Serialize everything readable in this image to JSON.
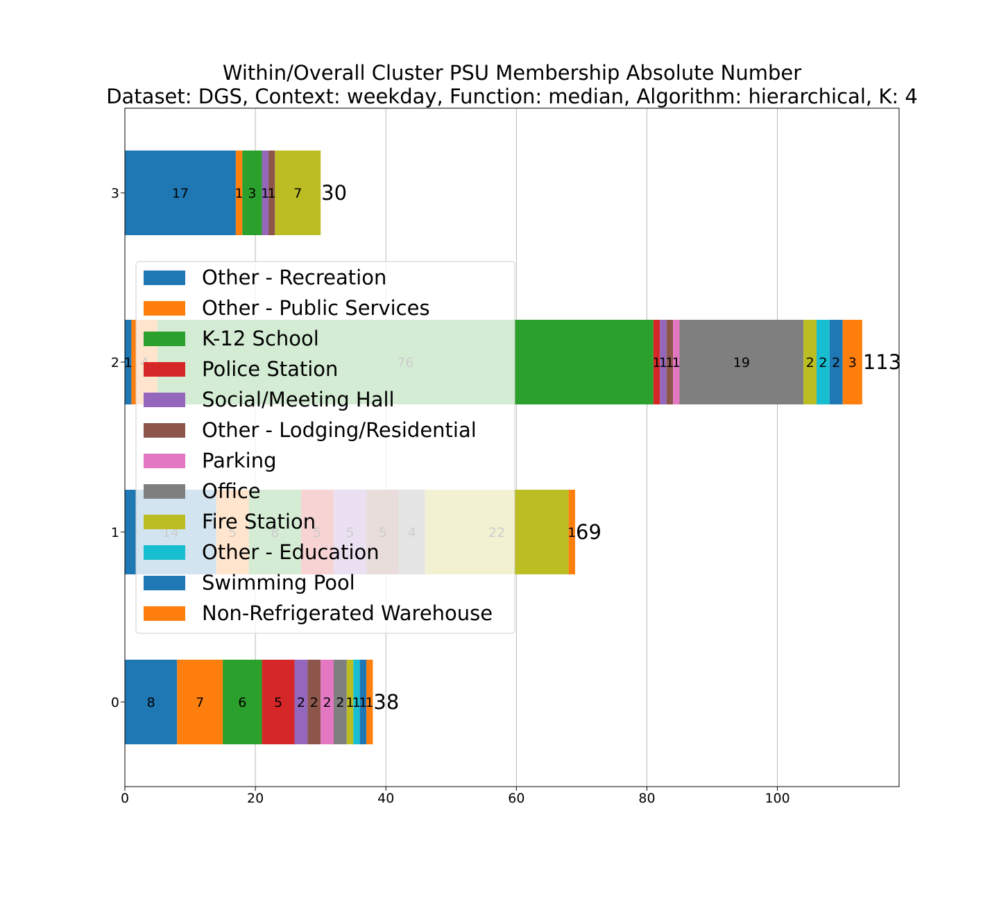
{
  "chart_data": {
    "type": "bar",
    "orientation": "horizontal",
    "stacked": true,
    "title": "Within/Overall Cluster PSU Membership Absolute Number",
    "subtitle": "Dataset: DGS, Context: weekday, Function: median, Algorithm: hierarchical, K: 4",
    "xlabel": "",
    "ylabel": "",
    "xlim": [
      0,
      118.65
    ],
    "x_ticks": [
      "0",
      "20",
      "40",
      "60",
      "80",
      "100"
    ],
    "categories": [
      "0",
      "1",
      "2",
      "3"
    ],
    "grid": "vertical",
    "legend_position": "center-left",
    "series": [
      {
        "name": "Other - Recreation",
        "color": "#1f77b4"
      },
      {
        "name": "Other - Public Services",
        "color": "#ff7f0e"
      },
      {
        "name": "K-12 School",
        "color": "#2ca02c"
      },
      {
        "name": "Police Station",
        "color": "#d62728"
      },
      {
        "name": "Social/Meeting Hall",
        "color": "#9467bd"
      },
      {
        "name": "Other - Lodging/Residential",
        "color": "#8c564b"
      },
      {
        "name": "Parking",
        "color": "#e377c2"
      },
      {
        "name": "Office",
        "color": "#7f7f7f"
      },
      {
        "name": "Fire Station",
        "color": "#bcbd22"
      },
      {
        "name": "Other - Education",
        "color": "#17becf"
      },
      {
        "name": "Swimming Pool",
        "color": "#1f77b4"
      },
      {
        "name": "Non-Refrigerated Warehouse",
        "color": "#ff7f0e"
      }
    ],
    "bars": [
      {
        "cluster": "0",
        "total": "38",
        "segments": [
          {
            "value": 8,
            "color": "#1f77b4",
            "label": "8"
          },
          {
            "value": 7,
            "color": "#ff7f0e",
            "label": "7"
          },
          {
            "value": 6,
            "color": "#2ca02c",
            "label": "6"
          },
          {
            "value": 5,
            "color": "#d62728",
            "label": "5"
          },
          {
            "value": 2,
            "color": "#9467bd",
            "label": "2"
          },
          {
            "value": 2,
            "color": "#8c564b",
            "label": "2"
          },
          {
            "value": 2,
            "color": "#e377c2",
            "label": "2"
          },
          {
            "value": 2,
            "color": "#7f7f7f",
            "label": "2"
          },
          {
            "value": 1,
            "color": "#bcbd22",
            "label": "1"
          },
          {
            "value": 1,
            "color": "#17becf",
            "label": "1"
          },
          {
            "value": 1,
            "color": "#1f77b4",
            "label": "1"
          },
          {
            "value": 1,
            "color": "#ff7f0e",
            "label": "1"
          }
        ]
      },
      {
        "cluster": "1",
        "total": "69",
        "segments": [
          {
            "value": 14,
            "color": "#1f77b4",
            "label": "14"
          },
          {
            "value": 5,
            "color": "#ff7f0e",
            "label": "5"
          },
          {
            "value": 8,
            "color": "#2ca02c",
            "label": "8"
          },
          {
            "value": 5,
            "color": "#d62728",
            "label": "5"
          },
          {
            "value": 5,
            "color": "#9467bd",
            "label": "5"
          },
          {
            "value": 5,
            "color": "#8c564b",
            "label": "5"
          },
          {
            "value": 4,
            "color": "#7f7f7f",
            "label": "4"
          },
          {
            "value": 22,
            "color": "#bcbd22",
            "label": "22"
          },
          {
            "value": 1,
            "color": "#ff7f0e",
            "label": "1"
          }
        ]
      },
      {
        "cluster": "2",
        "total": "113",
        "segments": [
          {
            "value": 1,
            "color": "#1f77b4",
            "label": "1"
          },
          {
            "value": 4,
            "color": "#ff7f0e",
            "label": "4"
          },
          {
            "value": 76,
            "color": "#2ca02c",
            "label": "76"
          },
          {
            "value": 1,
            "color": "#d62728",
            "label": "1"
          },
          {
            "value": 1,
            "color": "#9467bd",
            "label": "1"
          },
          {
            "value": 1,
            "color": "#8c564b",
            "label": "1"
          },
          {
            "value": 1,
            "color": "#e377c2",
            "label": "1"
          },
          {
            "value": 19,
            "color": "#7f7f7f",
            "label": "19"
          },
          {
            "value": 2,
            "color": "#bcbd22",
            "label": "2"
          },
          {
            "value": 2,
            "color": "#17becf",
            "label": "2"
          },
          {
            "value": 2,
            "color": "#1f77b4",
            "label": "2"
          },
          {
            "value": 3,
            "color": "#ff7f0e",
            "label": "3"
          }
        ]
      },
      {
        "cluster": "3",
        "total": "30",
        "segments": [
          {
            "value": 17,
            "color": "#1f77b4",
            "label": "17"
          },
          {
            "value": 1,
            "color": "#ff7f0e",
            "label": "1"
          },
          {
            "value": 3,
            "color": "#2ca02c",
            "label": "3"
          },
          {
            "value": 1,
            "color": "#9467bd",
            "label": "1"
          },
          {
            "value": 1,
            "color": "#8c564b",
            "label": "1"
          },
          {
            "value": 7,
            "color": "#bcbd22",
            "label": "7"
          }
        ]
      }
    ]
  }
}
